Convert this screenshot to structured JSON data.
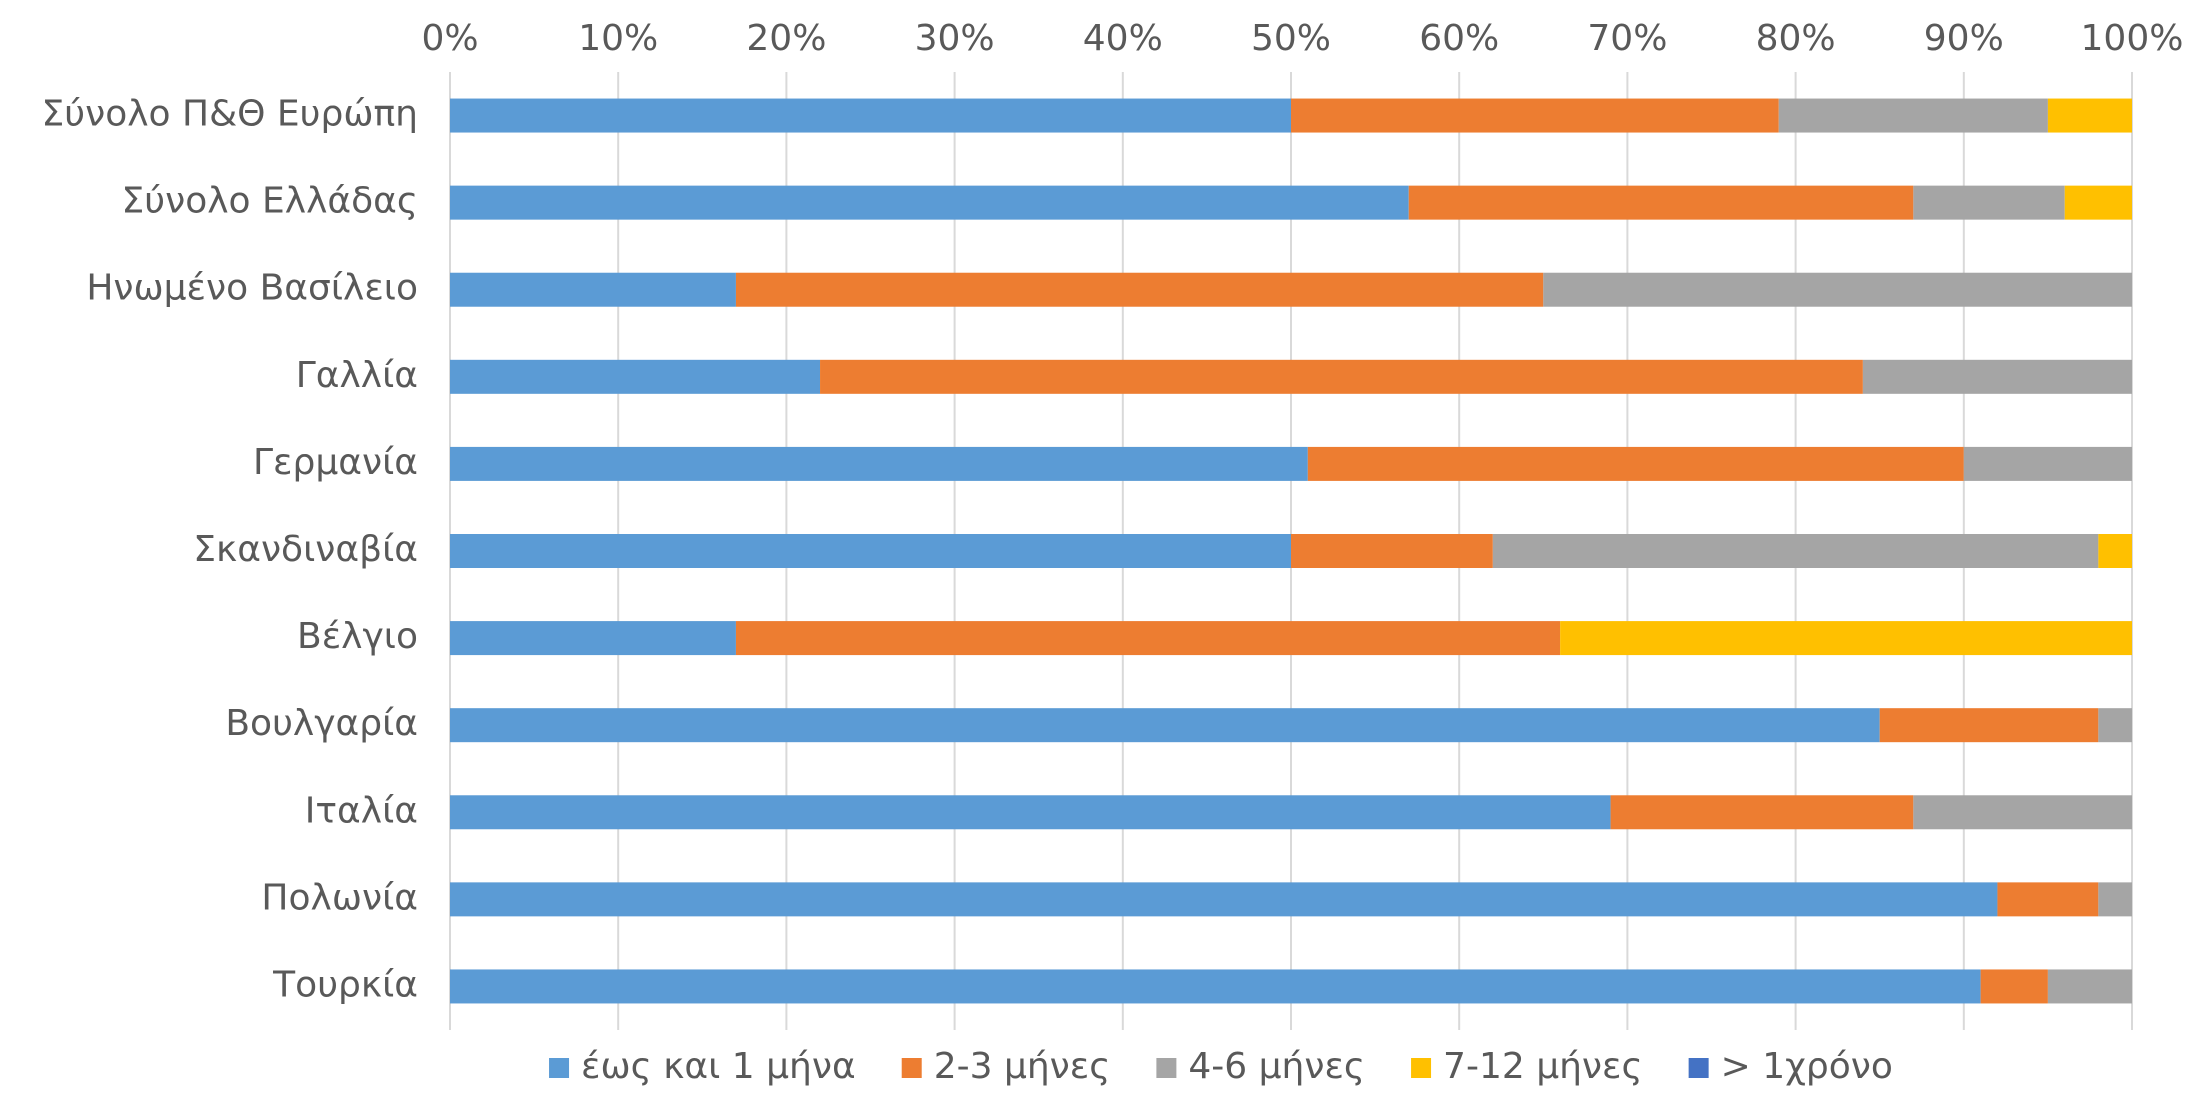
{
  "chart_data": {
    "type": "bar",
    "orientation": "horizontal",
    "stacked": "percent",
    "categories": [
      "Σύνολο Π&Θ Ευρώπη",
      "Σύνολο Ελλάδας",
      "Ηνωμένο Βασίλειο",
      "Γαλλία",
      "Γερμανία",
      "Σκανδιναβία",
      "Βέλγιο",
      "Βουλγαρία",
      "Ιταλία",
      "Πολωνία",
      "Τουρκία"
    ],
    "series": [
      {
        "name": "έως και 1 μήνα",
        "color": "#5B9BD5",
        "values": [
          50,
          57,
          17,
          22,
          51,
          50,
          17,
          85,
          69,
          92,
          91
        ]
      },
      {
        "name": "2-3 μήνες",
        "color": "#ED7D31",
        "values": [
          29,
          30,
          48,
          62,
          39,
          12,
          49,
          13,
          18,
          6,
          4
        ]
      },
      {
        "name": "4-6 μήνες",
        "color": "#A5A5A5",
        "values": [
          16,
          9,
          35,
          16,
          10,
          36,
          0,
          2,
          13,
          2,
          5
        ]
      },
      {
        "name": "7-12 μήνες",
        "color": "#FFC000",
        "values": [
          5,
          4,
          0,
          0,
          0,
          2,
          34,
          0,
          0,
          0,
          0
        ]
      },
      {
        "name": "> 1χρόνο",
        "color": "#4472C4",
        "values": [
          0,
          0,
          0,
          0,
          0,
          0,
          0,
          0,
          0,
          0,
          0
        ]
      }
    ],
    "xlim": [
      0,
      100
    ],
    "x_ticks": [
      "0%",
      "10%",
      "20%",
      "30%",
      "40%",
      "50%",
      "60%",
      "70%",
      "80%",
      "90%",
      "100%"
    ],
    "x_axis_position": "top",
    "grid": "vertical",
    "legend_position": "bottom",
    "title": "",
    "xlabel": "",
    "ylabel": ""
  }
}
